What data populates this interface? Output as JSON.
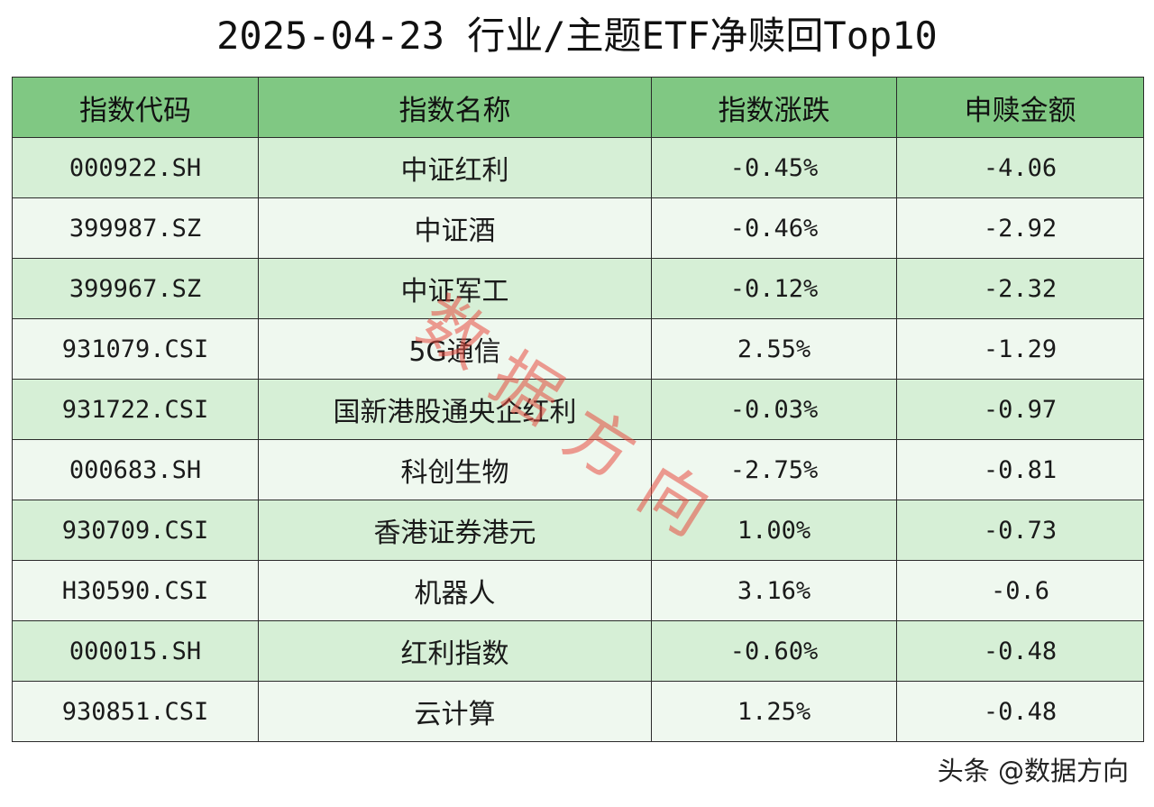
{
  "title": "2025-04-23 行业/主题ETF净赎回Top10",
  "table": {
    "headers": [
      "指数代码",
      "指数名称",
      "指数涨跌",
      "申赎金额"
    ],
    "rows": [
      [
        "000922.SH",
        "中证红利",
        "-0.45%",
        "-4.06"
      ],
      [
        "399987.SZ",
        "中证酒",
        "-0.46%",
        "-2.92"
      ],
      [
        "399967.SZ",
        "中证军工",
        "-0.12%",
        "-2.32"
      ],
      [
        "931079.CSI",
        "5G通信",
        "2.55%",
        "-1.29"
      ],
      [
        "931722.CSI",
        "国新港股通央企红利",
        "-0.03%",
        "-0.97"
      ],
      [
        "000683.SH",
        "科创生物",
        "-2.75%",
        "-0.81"
      ],
      [
        "930709.CSI",
        "香港证券港元",
        "1.00%",
        "-0.73"
      ],
      [
        "H30590.CSI",
        "机器人",
        "3.16%",
        "-0.6"
      ],
      [
        "000015.SH",
        "红利指数",
        "-0.60%",
        "-0.48"
      ],
      [
        "930851.CSI",
        "云计算",
        "1.25%",
        "-0.48"
      ]
    ]
  },
  "watermark": {
    "chars": [
      "数",
      "据",
      "方",
      "向"
    ],
    "color": "#e84a40"
  },
  "footer": {
    "source": "头条 @数据方向"
  },
  "colors": {
    "header_bg": "#80c883",
    "row_odd_bg": "#d6efd6",
    "row_even_bg": "#eff8ef"
  }
}
